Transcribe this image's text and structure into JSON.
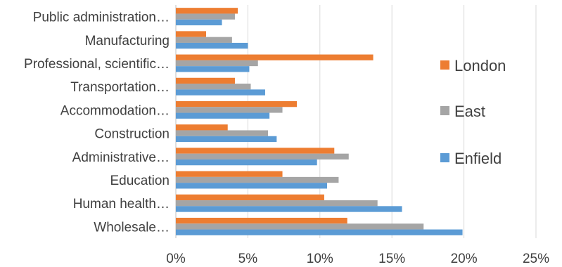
{
  "chart_data": {
    "type": "bar",
    "orientation": "horizontal",
    "categories": [
      "Wholesale…",
      "Human health…",
      "Education",
      "Administrative…",
      "Construction",
      "Accommodation…",
      "Transportation…",
      "Professional, scientific…",
      "Manufacturing",
      "Public administration…"
    ],
    "series": [
      {
        "name": "Enfield",
        "color": "#5b9bd5",
        "values": [
          0.199,
          0.157,
          0.105,
          0.098,
          0.07,
          0.065,
          0.062,
          0.051,
          0.05,
          0.032
        ]
      },
      {
        "name": "East",
        "color": "#a5a5a5",
        "values": [
          0.172,
          0.14,
          0.113,
          0.12,
          0.064,
          0.074,
          0.052,
          0.057,
          0.039,
          0.041
        ]
      },
      {
        "name": "London",
        "color": "#ed7d31",
        "values": [
          0.119,
          0.103,
          0.074,
          0.11,
          0.036,
          0.084,
          0.041,
          0.137,
          0.021,
          0.043
        ]
      }
    ],
    "xlim": [
      0,
      0.25
    ],
    "x_ticks": [
      0,
      0.05,
      0.1,
      0.15,
      0.2,
      0.25
    ],
    "x_tick_labels": [
      "0%",
      "5%",
      "10%",
      "15%",
      "20%",
      "25%"
    ],
    "legend": {
      "position": "right",
      "order": [
        "London",
        "East",
        "Enfield"
      ]
    },
    "grid": {
      "vertical": true,
      "horizontal": false
    }
  }
}
